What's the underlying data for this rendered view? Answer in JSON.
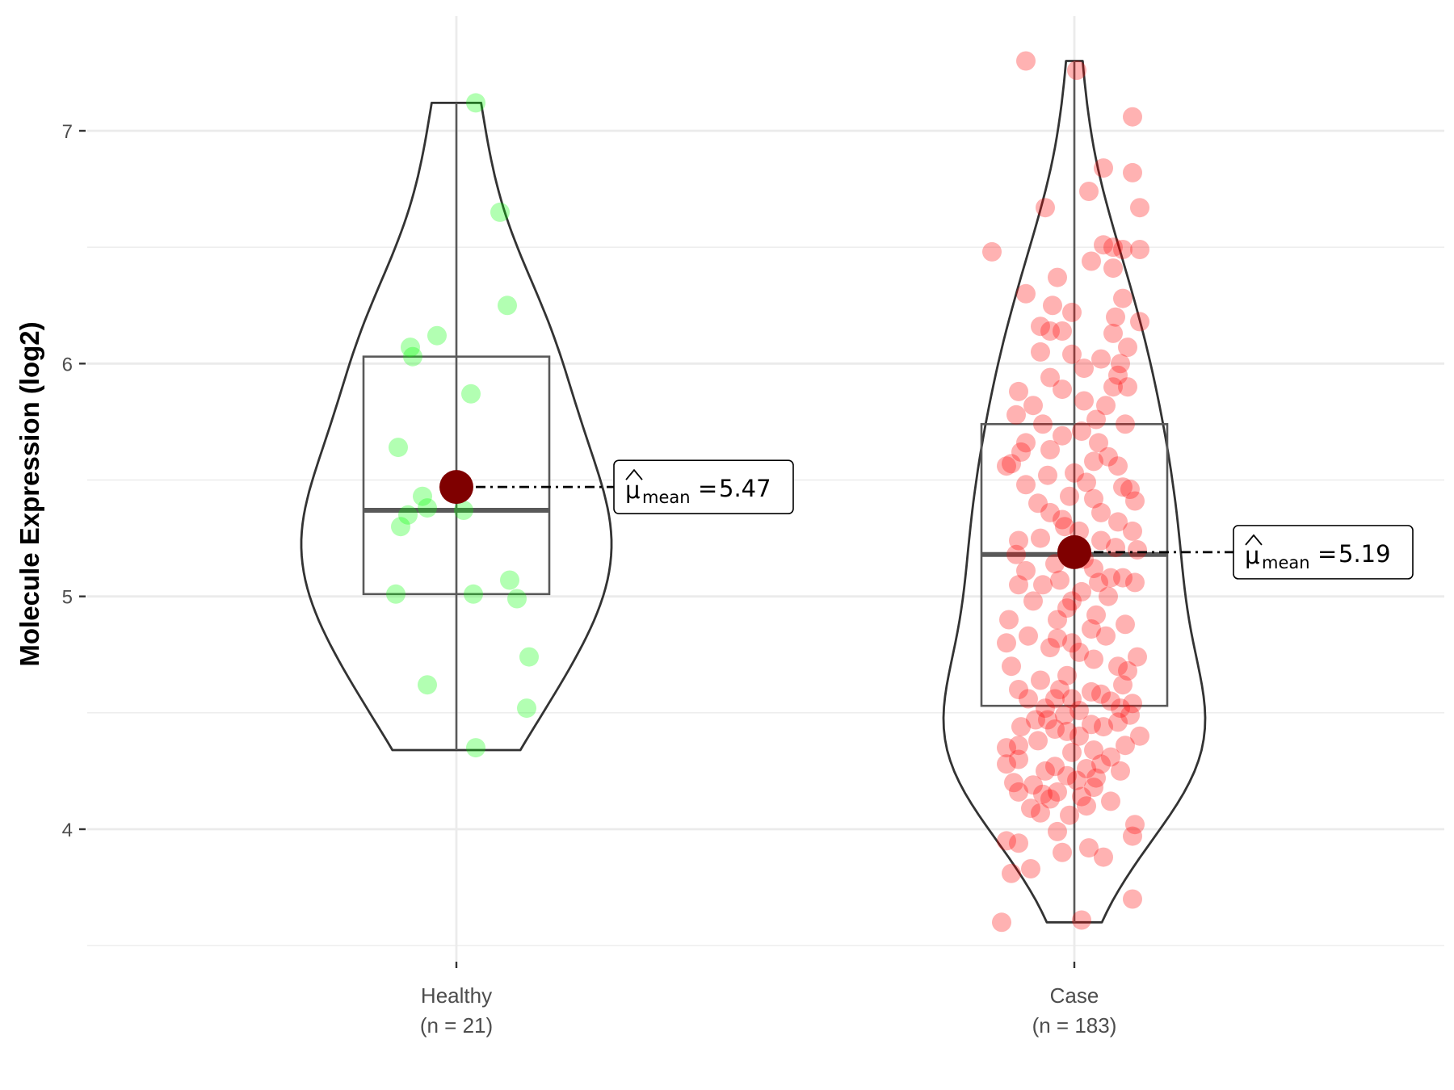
{
  "chart_data": {
    "type": "violin",
    "title": "",
    "xlabel": "",
    "ylabel": "Molecule Expression (log2)",
    "ylim": [
      3.5,
      7.5
    ],
    "yticks": [
      4,
      5,
      6,
      7
    ],
    "grid": true,
    "categories": [
      "Healthy",
      "Case"
    ],
    "category_counts": [
      "(n = 21)",
      "(n = 183)"
    ],
    "groups": [
      {
        "name": "Healthy",
        "n_label": "(n = 21)",
        "point_color": "#00ff00",
        "min": 4.34,
        "q1": 5.01,
        "median": 5.37,
        "q3": 6.03,
        "max": 7.12,
        "mean": 5.47,
        "mean_label": "5.47",
        "points": [
          {
            "dx": 0.08,
            "y": 7.12
          },
          {
            "dx": 0.18,
            "y": 6.65
          },
          {
            "dx": 0.21,
            "y": 6.25
          },
          {
            "dx": -0.08,
            "y": 6.12
          },
          {
            "dx": -0.19,
            "y": 6.07
          },
          {
            "dx": -0.18,
            "y": 6.03
          },
          {
            "dx": 0.06,
            "y": 5.87
          },
          {
            "dx": -0.24,
            "y": 5.64
          },
          {
            "dx": -0.14,
            "y": 5.43
          },
          {
            "dx": -0.12,
            "y": 5.38
          },
          {
            "dx": -0.2,
            "y": 5.35
          },
          {
            "dx": 0.03,
            "y": 5.37
          },
          {
            "dx": -0.23,
            "y": 5.3
          },
          {
            "dx": 0.22,
            "y": 5.07
          },
          {
            "dx": -0.25,
            "y": 5.01
          },
          {
            "dx": 0.07,
            "y": 5.01
          },
          {
            "dx": 0.25,
            "y": 4.99
          },
          {
            "dx": 0.3,
            "y": 4.74
          },
          {
            "dx": -0.12,
            "y": 4.62
          },
          {
            "dx": 0.29,
            "y": 4.52
          },
          {
            "dx": 0.08,
            "y": 4.35
          }
        ]
      },
      {
        "name": "Case",
        "n_label": "(n = 183)",
        "point_color": "#ff0000",
        "min": 3.6,
        "q1": 4.53,
        "median": 5.18,
        "q3": 5.74,
        "max": 7.3,
        "mean": 5.19,
        "mean_label": "5.19",
        "points": [
          {
            "dx": -0.2,
            "y": 7.3
          },
          {
            "dx": 0.01,
            "y": 7.26
          },
          {
            "dx": 0.24,
            "y": 7.06
          },
          {
            "dx": 0.12,
            "y": 6.84
          },
          {
            "dx": 0.24,
            "y": 6.82
          },
          {
            "dx": 0.06,
            "y": 6.74
          },
          {
            "dx": -0.12,
            "y": 6.67
          },
          {
            "dx": 0.27,
            "y": 6.67
          },
          {
            "dx": 0.12,
            "y": 6.51
          },
          {
            "dx": 0.16,
            "y": 6.5
          },
          {
            "dx": 0.2,
            "y": 6.49
          },
          {
            "dx": -0.34,
            "y": 6.48
          },
          {
            "dx": 0.07,
            "y": 6.44
          },
          {
            "dx": 0.16,
            "y": 6.41
          },
          {
            "dx": 0.27,
            "y": 6.49
          },
          {
            "dx": -0.07,
            "y": 6.37
          },
          {
            "dx": -0.09,
            "y": 6.25
          },
          {
            "dx": -0.01,
            "y": 6.22
          },
          {
            "dx": 0.17,
            "y": 6.2
          },
          {
            "dx": 0.27,
            "y": 6.18
          },
          {
            "dx": -0.14,
            "y": 6.16
          },
          {
            "dx": 0.16,
            "y": 6.13
          },
          {
            "dx": -0.1,
            "y": 6.14
          },
          {
            "dx": -0.05,
            "y": 6.14
          },
          {
            "dx": 0.22,
            "y": 6.07
          },
          {
            "dx": -0.14,
            "y": 6.05
          },
          {
            "dx": -0.01,
            "y": 6.04
          },
          {
            "dx": 0.11,
            "y": 6.02
          },
          {
            "dx": 0.04,
            "y": 5.98
          },
          {
            "dx": 0.18,
            "y": 5.95
          },
          {
            "dx": -0.1,
            "y": 5.94
          },
          {
            "dx": -0.05,
            "y": 5.89
          },
          {
            "dx": 0.16,
            "y": 5.9
          },
          {
            "dx": 0.22,
            "y": 5.9
          },
          {
            "dx": 0.04,
            "y": 5.84
          },
          {
            "dx": 0.13,
            "y": 5.82
          },
          {
            "dx": -0.24,
            "y": 5.78
          },
          {
            "dx": 0.09,
            "y": 5.76
          },
          {
            "dx": 0.21,
            "y": 5.74
          },
          {
            "dx": -0.13,
            "y": 5.74
          },
          {
            "dx": 0.03,
            "y": 5.71
          },
          {
            "dx": -0.05,
            "y": 5.69
          },
          {
            "dx": -0.2,
            "y": 5.66
          },
          {
            "dx": -0.1,
            "y": 5.63
          },
          {
            "dx": 0.14,
            "y": 5.6
          },
          {
            "dx": 0.08,
            "y": 5.58
          },
          {
            "dx": -0.26,
            "y": 5.57
          },
          {
            "dx": -0.11,
            "y": 5.52
          },
          {
            "dx": 0.05,
            "y": 5.49
          },
          {
            "dx": -0.2,
            "y": 5.48
          },
          {
            "dx": 0.2,
            "y": 5.47
          },
          {
            "dx": -0.02,
            "y": 5.43
          },
          {
            "dx": 0.08,
            "y": 5.42
          },
          {
            "dx": 0.25,
            "y": 5.41
          },
          {
            "dx": -0.1,
            "y": 5.36
          },
          {
            "dx": 0.11,
            "y": 5.36
          },
          {
            "dx": 0.18,
            "y": 5.32
          },
          {
            "dx": -0.04,
            "y": 5.3
          },
          {
            "dx": 0.02,
            "y": 5.28
          },
          {
            "dx": -0.14,
            "y": 5.25
          },
          {
            "dx": -0.23,
            "y": 5.24
          },
          {
            "dx": 0.11,
            "y": 5.24
          },
          {
            "dx": 0.17,
            "y": 5.21
          },
          {
            "dx": -0.01,
            "y": 5.19
          },
          {
            "dx": 0.04,
            "y": 5.16
          },
          {
            "dx": -0.08,
            "y": 5.14
          },
          {
            "dx": 0.08,
            "y": 5.12
          },
          {
            "dx": -0.2,
            "y": 5.11
          },
          {
            "dx": 0.15,
            "y": 5.08
          },
          {
            "dx": 0.2,
            "y": 5.08
          },
          {
            "dx": -0.06,
            "y": 5.07
          },
          {
            "dx": -0.13,
            "y": 5.05
          },
          {
            "dx": 0.1,
            "y": 5.06
          },
          {
            "dx": -0.23,
            "y": 5.05
          },
          {
            "dx": 0.25,
            "y": 5.06
          },
          {
            "dx": 0.03,
            "y": 5.02
          },
          {
            "dx": -0.01,
            "y": 4.98
          },
          {
            "dx": -0.03,
            "y": 4.95
          },
          {
            "dx": 0.09,
            "y": 4.92
          },
          {
            "dx": -0.07,
            "y": 4.9
          },
          {
            "dx": 0.21,
            "y": 4.88
          },
          {
            "dx": 0.07,
            "y": 4.86
          },
          {
            "dx": -0.19,
            "y": 4.83
          },
          {
            "dx": -0.07,
            "y": 4.82
          },
          {
            "dx": 0.13,
            "y": 4.83
          },
          {
            "dx": -0.01,
            "y": 4.8
          },
          {
            "dx": -0.28,
            "y": 4.8
          },
          {
            "dx": -0.1,
            "y": 4.78
          },
          {
            "dx": 0.02,
            "y": 4.76
          },
          {
            "dx": 0.08,
            "y": 4.73
          },
          {
            "dx": 0.18,
            "y": 4.7
          },
          {
            "dx": 0.22,
            "y": 4.68
          },
          {
            "dx": -0.03,
            "y": 4.66
          },
          {
            "dx": -0.14,
            "y": 4.64
          },
          {
            "dx": -0.06,
            "y": 4.6
          },
          {
            "dx": -0.23,
            "y": 4.6
          },
          {
            "dx": 0.07,
            "y": 4.59
          },
          {
            "dx": 0.11,
            "y": 4.58
          },
          {
            "dx": -0.01,
            "y": 4.56
          },
          {
            "dx": -0.08,
            "y": 4.56
          },
          {
            "dx": -0.19,
            "y": 4.56
          },
          {
            "dx": 0.15,
            "y": 4.55
          },
          {
            "dx": 0.24,
            "y": 4.54
          },
          {
            "dx": -0.12,
            "y": 4.52
          },
          {
            "dx": 0.19,
            "y": 4.52
          },
          {
            "dx": 0.02,
            "y": 4.51
          },
          {
            "dx": -0.04,
            "y": 4.49
          },
          {
            "dx": 0.23,
            "y": 4.49
          },
          {
            "dx": -0.16,
            "y": 4.47
          },
          {
            "dx": -0.11,
            "y": 4.47
          },
          {
            "dx": 0.18,
            "y": 4.46
          },
          {
            "dx": 0.07,
            "y": 4.45
          },
          {
            "dx": 0.12,
            "y": 4.44
          },
          {
            "dx": -0.08,
            "y": 4.43
          },
          {
            "dx": -0.03,
            "y": 4.42
          },
          {
            "dx": 0.02,
            "y": 4.4
          },
          {
            "dx": -0.15,
            "y": 4.38
          },
          {
            "dx": -0.23,
            "y": 4.36
          },
          {
            "dx": -0.28,
            "y": 4.35
          },
          {
            "dx": 0.08,
            "y": 4.34
          },
          {
            "dx": -0.01,
            "y": 4.33
          },
          {
            "dx": 0.15,
            "y": 4.31
          },
          {
            "dx": -0.23,
            "y": 4.3
          },
          {
            "dx": -0.28,
            "y": 4.28
          },
          {
            "dx": 0.11,
            "y": 4.28
          },
          {
            "dx": -0.08,
            "y": 4.27
          },
          {
            "dx": 0.05,
            "y": 4.26
          },
          {
            "dx": -0.12,
            "y": 4.25
          },
          {
            "dx": 0.19,
            "y": 4.25
          },
          {
            "dx": -0.03,
            "y": 4.23
          },
          {
            "dx": 0.01,
            "y": 4.21
          },
          {
            "dx": -0.17,
            "y": 4.19
          },
          {
            "dx": 0.08,
            "y": 4.18
          },
          {
            "dx": -0.07,
            "y": 4.16
          },
          {
            "dx": -0.13,
            "y": 4.15
          },
          {
            "dx": -0.23,
            "y": 4.16
          },
          {
            "dx": 0.03,
            "y": 4.14
          },
          {
            "dx": -0.1,
            "y": 4.13
          },
          {
            "dx": -0.18,
            "y": 4.09
          },
          {
            "dx": 0.05,
            "y": 4.1
          },
          {
            "dx": -0.14,
            "y": 4.07
          },
          {
            "dx": 0.25,
            "y": 4.02
          },
          {
            "dx": -0.07,
            "y": 3.99
          },
          {
            "dx": 0.24,
            "y": 3.97
          },
          {
            "dx": -0.28,
            "y": 3.95
          },
          {
            "dx": -0.23,
            "y": 3.94
          },
          {
            "dx": -0.18,
            "y": 3.83
          },
          {
            "dx": -0.26,
            "y": 3.81
          },
          {
            "dx": -0.05,
            "y": 3.9
          },
          {
            "dx": 0.12,
            "y": 3.88
          },
          {
            "dx": 0.06,
            "y": 3.92
          },
          {
            "dx": -0.02,
            "y": 4.06
          },
          {
            "dx": 0.15,
            "y": 4.12
          },
          {
            "dx": 0.09,
            "y": 4.22
          },
          {
            "dx": -0.22,
            "y": 4.44
          },
          {
            "dx": 0.2,
            "y": 4.62
          },
          {
            "dx": -0.26,
            "y": 4.7
          },
          {
            "dx": 0.26,
            "y": 4.74
          },
          {
            "dx": -0.17,
            "y": 4.98
          },
          {
            "dx": 0.14,
            "y": 5.0
          },
          {
            "dx": -0.24,
            "y": 5.18
          },
          {
            "dx": 0.24,
            "y": 5.28
          },
          {
            "dx": -0.15,
            "y": 5.4
          },
          {
            "dx": 0.18,
            "y": 5.56
          },
          {
            "dx": -0.22,
            "y": 5.62
          },
          {
            "dx": 0.1,
            "y": 5.66
          },
          {
            "dx": -0.17,
            "y": 5.82
          },
          {
            "dx": 0.19,
            "y": 6.0
          },
          {
            "dx": -0.2,
            "y": 6.3
          },
          {
            "dx": 0.2,
            "y": 6.28
          },
          {
            "dx": -0.23,
            "y": 5.88
          },
          {
            "dx": 0.23,
            "y": 5.46
          },
          {
            "dx": -0.28,
            "y": 5.56
          },
          {
            "dx": 0.26,
            "y": 5.2
          },
          {
            "dx": -0.27,
            "y": 4.9
          },
          {
            "dx": 0.27,
            "y": 4.4
          },
          {
            "dx": -0.25,
            "y": 4.2
          },
          {
            "dx": 0.21,
            "y": 4.36
          },
          {
            "dx": -0.3,
            "y": 3.6
          },
          {
            "dx": 0.03,
            "y": 3.61
          },
          {
            "dx": 0.24,
            "y": 3.7
          },
          {
            "dx": 0.0,
            "y": 5.53
          },
          {
            "dx": -0.05,
            "y": 5.33
          }
        ]
      }
    ]
  },
  "annotation": {
    "symbol": "μ",
    "subscript": "mean",
    "equals": "="
  },
  "colors": {
    "mean_point": "#7f0000",
    "outline": "#333333",
    "box": "#595959",
    "grid": "#ebebeb"
  }
}
